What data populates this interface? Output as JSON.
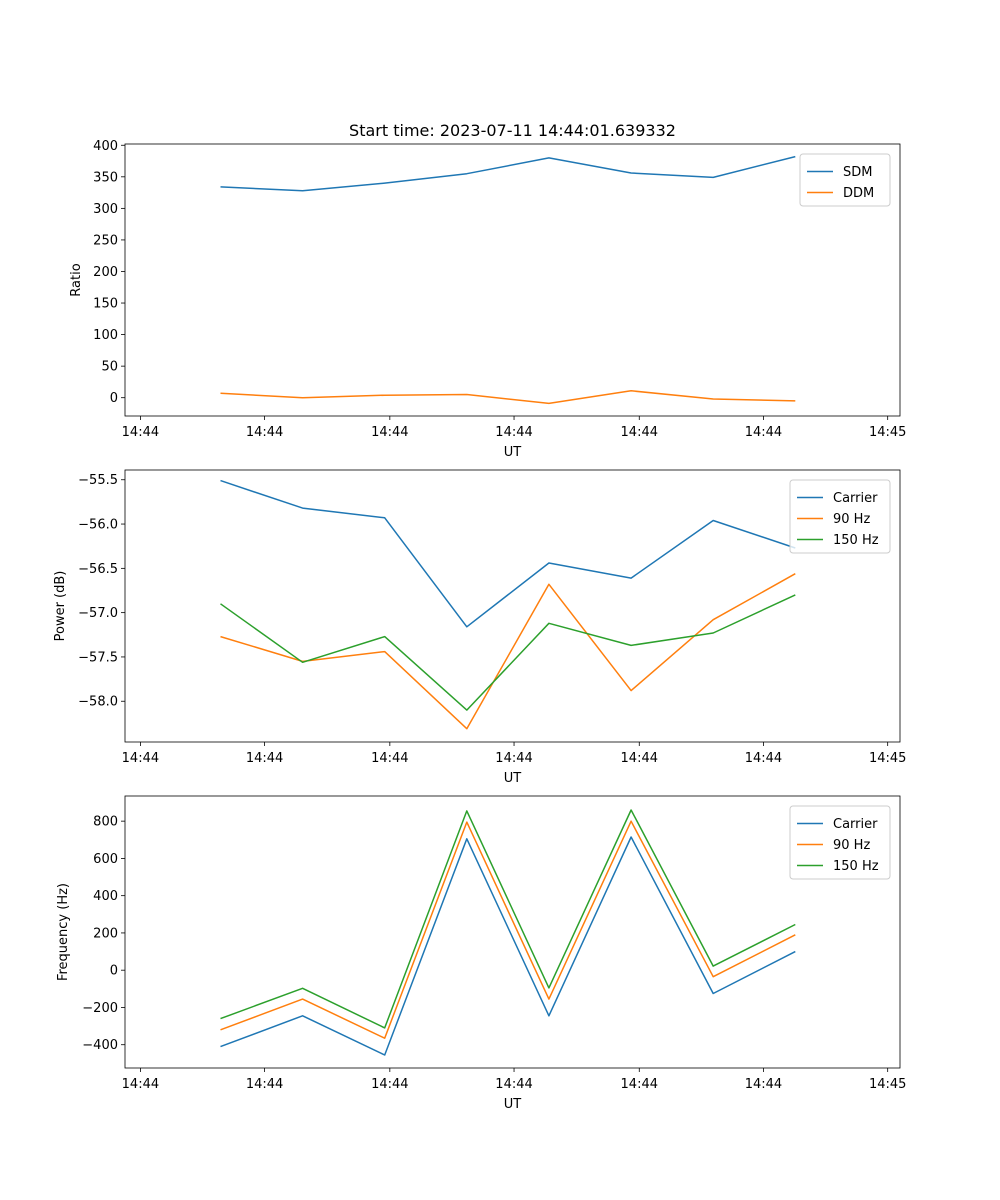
{
  "figure_title": "Start time: 2023-07-11 14:44:01.639332",
  "chart_data": [
    {
      "type": "line",
      "title": "Start time: 2023-07-11 14:44:01.639332",
      "xlabel": "UT",
      "ylabel": "Ratio",
      "x_positions": [
        0.78,
        1.58,
        2.38,
        3.18,
        3.98,
        4.78,
        5.58,
        6.38
      ],
      "xlim": [
        -0.15,
        7.4
      ],
      "xticks": [
        0,
        1.21,
        2.43,
        3.64,
        4.86,
        6.07,
        7.28
      ],
      "xtick_labels": [
        "14:44",
        "14:44",
        "14:44",
        "14:44",
        "14:44",
        "14:44",
        "14:45"
      ],
      "ylim": [
        -29,
        402
      ],
      "yticks": [
        0,
        50,
        100,
        150,
        200,
        250,
        300,
        350,
        400
      ],
      "ytick_labels": [
        "0",
        "50",
        "100",
        "150",
        "200",
        "250",
        "300",
        "350",
        "400"
      ],
      "legend_position": "upper right",
      "series": [
        {
          "name": "SDM",
          "color": "#1f77b4",
          "values": [
            334,
            328,
            340,
            355,
            380,
            356,
            349,
            382
          ]
        },
        {
          "name": "DDM",
          "color": "#ff7f0e",
          "values": [
            7,
            0,
            4,
            5,
            -9,
            11,
            -2,
            -5
          ]
        }
      ]
    },
    {
      "type": "line",
      "xlabel": "UT",
      "ylabel": "Power (dB)",
      "x_positions": [
        0.78,
        1.58,
        2.38,
        3.18,
        3.98,
        4.78,
        5.58,
        6.38
      ],
      "xlim": [
        -0.15,
        7.4
      ],
      "xticks": [
        0,
        1.21,
        2.43,
        3.64,
        4.86,
        6.07,
        7.28
      ],
      "xtick_labels": [
        "14:44",
        "14:44",
        "14:44",
        "14:44",
        "14:44",
        "14:44",
        "14:45"
      ],
      "ylim": [
        -58.46,
        -55.39
      ],
      "yticks": [
        -58.0,
        -57.5,
        -57.0,
        -56.5,
        -56.0,
        -55.5
      ],
      "ytick_labels": [
        "−58.0",
        "−57.5",
        "−57.0",
        "−56.5",
        "−56.0",
        "−55.5"
      ],
      "legend_position": "upper right",
      "series": [
        {
          "name": "Carrier",
          "color": "#1f77b4",
          "values": [
            -55.51,
            -55.82,
            -55.93,
            -57.16,
            -56.44,
            -56.61,
            -55.96,
            -56.27
          ]
        },
        {
          "name": "90 Hz",
          "color": "#ff7f0e",
          "values": [
            -57.27,
            -57.55,
            -57.44,
            -58.31,
            -56.68,
            -57.88,
            -57.08,
            -56.56
          ]
        },
        {
          "name": "150 Hz",
          "color": "#2ca02c",
          "values": [
            -56.9,
            -57.56,
            -57.27,
            -58.1,
            -57.12,
            -57.37,
            -57.23,
            -56.8
          ]
        }
      ]
    },
    {
      "type": "line",
      "xlabel": "UT",
      "ylabel": "Frequency (Hz)",
      "x_positions": [
        0.78,
        1.58,
        2.38,
        3.18,
        3.98,
        4.78,
        5.58,
        6.38
      ],
      "xlim": [
        -0.15,
        7.4
      ],
      "xticks": [
        0,
        1.21,
        2.43,
        3.64,
        4.86,
        6.07,
        7.28
      ],
      "xtick_labels": [
        "14:44",
        "14:44",
        "14:44",
        "14:44",
        "14:44",
        "14:44",
        "14:45"
      ],
      "ylim": [
        -525,
        935
      ],
      "yticks": [
        -400,
        -200,
        0,
        200,
        400,
        600,
        800
      ],
      "ytick_labels": [
        "−400",
        "−200",
        "0",
        "200",
        "400",
        "600",
        "800"
      ],
      "legend_position": "upper right",
      "series": [
        {
          "name": "Carrier",
          "color": "#1f77b4",
          "values": [
            -410,
            -245,
            -455,
            705,
            -245,
            715,
            -125,
            100
          ]
        },
        {
          "name": "90 Hz",
          "color": "#ff7f0e",
          "values": [
            -320,
            -155,
            -365,
            795,
            -155,
            800,
            -35,
            190
          ]
        },
        {
          "name": "150 Hz",
          "color": "#2ca02c",
          "values": [
            -260,
            -97,
            -310,
            855,
            -95,
            860,
            22,
            245
          ]
        }
      ]
    }
  ]
}
